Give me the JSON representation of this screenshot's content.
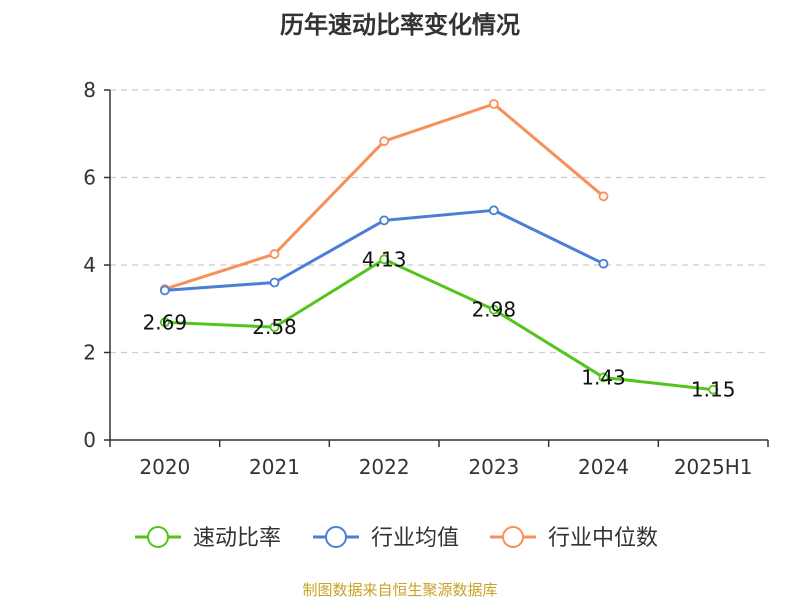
{
  "chart_data": {
    "type": "line",
    "title": "历年速动比率变化情况",
    "categories": [
      "2020",
      "2021",
      "2022",
      "2023",
      "2024",
      "2025H1"
    ],
    "ylim": [
      0,
      8
    ],
    "yticks": [
      0,
      2,
      4,
      6,
      8
    ],
    "grid": true,
    "legend_position": "bottom",
    "series": [
      {
        "name": "速动比率",
        "color": "#52c41a",
        "values": [
          2.69,
          2.58,
          4.13,
          2.98,
          1.43,
          1.15
        ],
        "labels": [
          "2.69",
          "2.58",
          "4.13",
          "2.98",
          "1.43",
          "1.15"
        ]
      },
      {
        "name": "行业均值",
        "color": "#4a7fd6",
        "values": [
          3.42,
          3.6,
          5.02,
          5.25,
          4.03,
          null
        ]
      },
      {
        "name": "行业中位数",
        "color": "#f79059",
        "values": [
          3.45,
          4.25,
          6.83,
          7.68,
          5.57,
          null
        ]
      }
    ]
  },
  "footer": {
    "source": "制图数据来自恒生聚源数据库"
  }
}
